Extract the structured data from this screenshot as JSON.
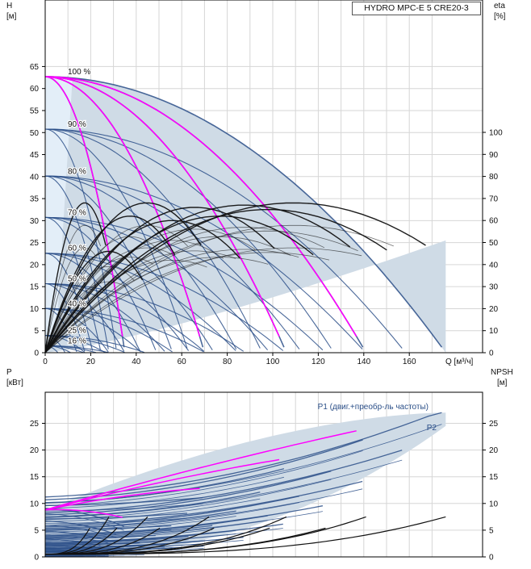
{
  "title": "HYDRO MPC-E 5 CRE20-3",
  "top_chart": {
    "left_axis": {
      "name": "H",
      "unit": "[м]",
      "ticks": [
        0,
        5,
        10,
        15,
        20,
        25,
        30,
        35,
        40,
        45,
        50,
        55,
        60,
        65
      ]
    },
    "right_axis": {
      "name": "eta",
      "unit": "[%]",
      "ticks": [
        0,
        10,
        20,
        30,
        40,
        50,
        60,
        70,
        80,
        90,
        100
      ]
    },
    "x_axis": {
      "label": "Q [м³/ч]",
      "ticks": [
        0,
        20,
        40,
        60,
        80,
        100,
        120,
        140,
        160
      ]
    },
    "speed_labels": [
      {
        "text": "100 %",
        "h": 62.7
      },
      {
        "text": "90 %",
        "h": 50.8
      },
      {
        "text": "80 %",
        "h": 40.1
      },
      {
        "text": "70 %",
        "h": 30.7
      },
      {
        "text": "60 %",
        "h": 22.6
      },
      {
        "text": "50 %",
        "h": 15.7
      },
      {
        "text": "40 %",
        "h": 10.0
      },
      {
        "text": "25 %",
        "h": 3.9
      },
      {
        "text": "16 %",
        "h": 1.6
      }
    ],
    "pumps_qmax_at_100": [
      35,
      70,
      106,
      141,
      176
    ],
    "h_shutoff_100": 62.7
  },
  "bottom_chart": {
    "left_axis": {
      "name": "P",
      "unit": "[кВт]",
      "ticks": [
        0,
        5,
        10,
        15,
        20,
        25
      ]
    },
    "right_axis": {
      "name": "NPSH",
      "unit": "[м]",
      "ticks": [
        0,
        5,
        10,
        15,
        20,
        25
      ]
    },
    "series_labels": {
      "p1": "P1 (двиг.+преобр-ль частоты)",
      "p2": "P2"
    }
  },
  "colors": {
    "curve": "#2b4f88",
    "highlight": "#ff00ff",
    "efficiency": "#111111",
    "band": "#cfdbe6",
    "band_light": "#e3eef8",
    "grid": "#d6d6d6"
  }
}
